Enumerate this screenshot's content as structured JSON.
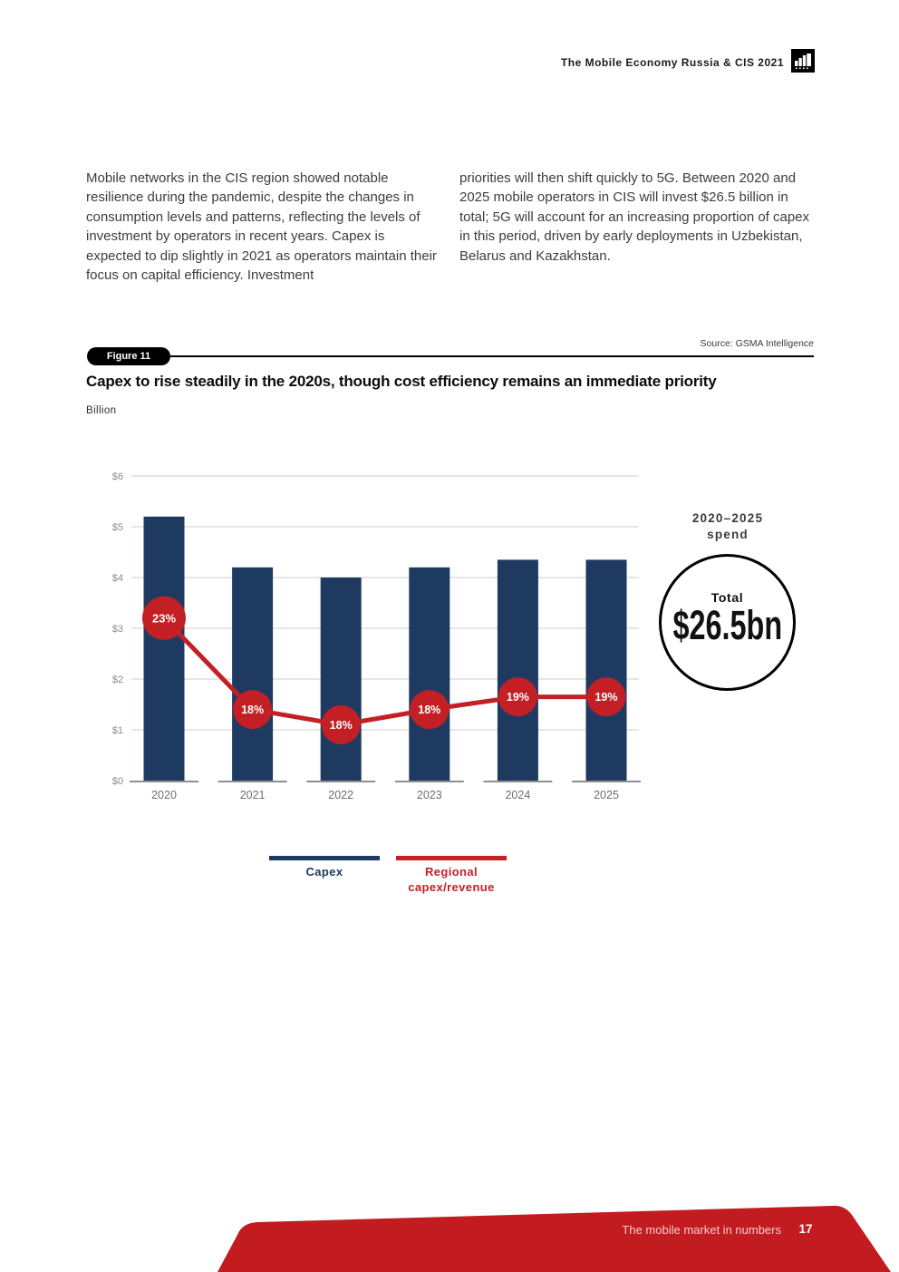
{
  "header": {
    "title": "The Mobile Economy Russia & CIS 2021"
  },
  "intro": {
    "col1": "Mobile networks in the CIS region showed notable resilience during the pandemic, despite the changes in consumption levels and patterns, reflecting the levels of investment by operators in recent years. Capex is expected to dip slightly in 2021 as operators maintain their focus on capital efficiency. Investment",
    "col2": "priorities will then shift quickly to 5G. Between 2020 and 2025 mobile operators in CIS will invest $26.5 billion in total; 5G will account for an increasing proportion of capex in this period, driven by early deployments in Uzbekistan, Belarus and Kazakhstan."
  },
  "figure": {
    "label": "Figure 11",
    "source": "Source: GSMA Intelligence",
    "title": "Capex to rise steadily in the 2020s, though cost efficiency remains an immediate priority",
    "unit_label": "Billion"
  },
  "chart_data": {
    "type": "bar",
    "categories": [
      "2020",
      "2021",
      "2022",
      "2023",
      "2024",
      "2025"
    ],
    "series": [
      {
        "name": "Capex",
        "render": "bar",
        "values": [
          5.2,
          4.2,
          4.0,
          4.2,
          4.35,
          4.35
        ],
        "color": "#1f3a60"
      },
      {
        "name": "Regional capex/revenue",
        "render": "line",
        "percent_labels": [
          "23%",
          "18%",
          "18%",
          "18%",
          "19%",
          "19%"
        ],
        "percent_values": [
          23,
          18,
          18,
          18,
          19,
          19
        ],
        "plot_values_usd_axis": [
          3.2,
          1.4,
          1.1,
          1.4,
          1.65,
          1.65
        ],
        "color": "#c32026"
      }
    ],
    "title": "Capex to rise steadily in the 2020s, though cost efficiency remains an immediate priority",
    "xlabel": "",
    "ylabel": "Billion",
    "yticks": [
      "$0",
      "$1",
      "$2",
      "$3",
      "$4",
      "$5",
      "$6"
    ],
    "ylim": [
      0,
      6
    ],
    "grid": true,
    "legend_position": "bottom",
    "annotation": {
      "period_line1": "2020–2025",
      "period_line2": "spend",
      "total_label": "Total",
      "total_value": "$26.5bn"
    }
  },
  "legend": {
    "capex": "Capex",
    "regional_line1": "Regional",
    "regional_line2": "capex/revenue"
  },
  "footer": {
    "section": "The mobile market in numbers",
    "page_number": "17"
  },
  "colors": {
    "bar_navy": "#1f3a60",
    "line_red": "#c32026",
    "footer_red": "#c21b20",
    "gridline": "#d8d8d8",
    "axis_text": "#8a8a8a",
    "xaxis_text": "#6f6f6f",
    "baseline_tick": "#8f8f8f"
  }
}
